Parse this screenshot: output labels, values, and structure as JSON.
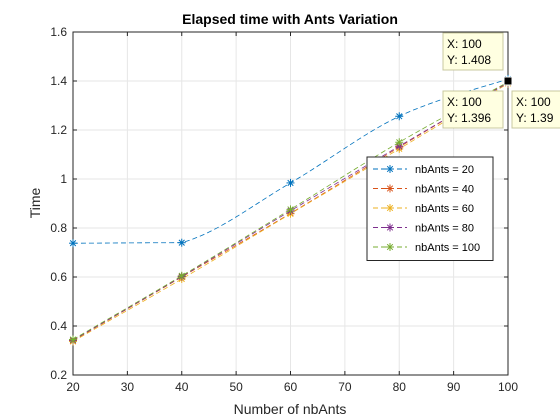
{
  "chart_data": {
    "type": "line",
    "title": "Elapsed time with Ants Variation",
    "xlabel": "Number of nbAnts",
    "ylabel": "Time",
    "xlim": [
      20,
      100
    ],
    "ylim": [
      0.2,
      1.6
    ],
    "xticks": [
      "20",
      "30",
      "40",
      "50",
      "60",
      "70",
      "80",
      "90",
      "100"
    ],
    "yticks": [
      "0.2",
      "0.4",
      "0.6",
      "0.8",
      "1",
      "1.2",
      "1.4",
      "1.6"
    ],
    "grid": true,
    "legend_position": "center-right",
    "x": [
      20,
      40,
      60,
      80,
      100
    ],
    "series": [
      {
        "name": "nbAnts = 20",
        "color": "#0072BD",
        "values": [
          0.738,
          0.74,
          0.984,
          1.256,
          1.408
        ]
      },
      {
        "name": "nbAnts = 40",
        "color": "#D95319",
        "values": [
          0.34,
          0.6,
          0.86,
          1.13,
          1.396
        ]
      },
      {
        "name": "nbAnts = 60",
        "color": "#EDB120",
        "values": [
          0.337,
          0.592,
          0.858,
          1.123,
          1.39
        ]
      },
      {
        "name": "nbAnts = 80",
        "color": "#7E2F8E",
        "values": [
          0.342,
          0.602,
          0.87,
          1.134,
          1.393
        ]
      },
      {
        "name": "nbAnts = 100",
        "color": "#77AC30",
        "values": [
          0.345,
          0.605,
          0.876,
          1.15,
          1.396
        ]
      }
    ],
    "datatips": [
      {
        "x_text": "X: 100",
        "y_text": "Y: 1.408",
        "x": 100,
        "y": 1.408
      },
      {
        "x_text": "X: 100",
        "y_text": "Y: 1.396",
        "x": 100,
        "y": 1.396
      },
      {
        "x_text": "X: 100",
        "y_text": "Y: 1.39",
        "x": 100,
        "y": 1.39
      }
    ]
  }
}
